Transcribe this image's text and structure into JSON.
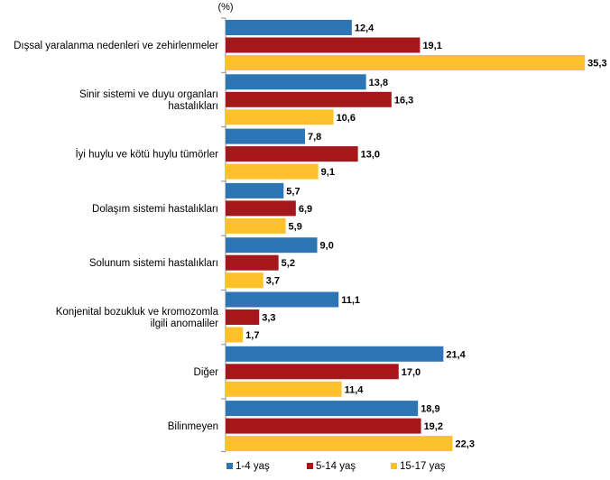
{
  "chart_data": {
    "type": "bar",
    "orientation": "horizontal",
    "unit_label": "(%)",
    "categories": [
      [
        "Dışsal yaralanma nedenleri ve zehirlenmeler"
      ],
      [
        "Sinir sistemi ve duyu organları",
        "hastalıkları"
      ],
      [
        "İyi huylu ve kötü huylu tümörler"
      ],
      [
        "Dolaşım sistemi hastalıkları"
      ],
      [
        "Solunum sistemi hastalıkları"
      ],
      [
        "Konjenital bozukluk ve kromozomla",
        "ilgili anomaliler"
      ],
      [
        "Diğer"
      ],
      [
        "Bilinmeyen"
      ]
    ],
    "series": [
      {
        "name": "1-4 yaş",
        "color": "#2E75B6",
        "values": [
          12.4,
          13.8,
          7.8,
          5.7,
          9.0,
          11.1,
          21.4,
          18.9
        ]
      },
      {
        "name": "5-14 yaş",
        "color": "#A6171C",
        "values": [
          19.1,
          16.3,
          13.0,
          6.9,
          5.2,
          3.3,
          17.0,
          19.2
        ]
      },
      {
        "name": "15-17 yaş",
        "color": "#FFC12B",
        "values": [
          35.3,
          10.6,
          9.1,
          5.9,
          3.7,
          1.7,
          11.4,
          22.3
        ]
      }
    ],
    "value_labels": [
      [
        "12,4",
        "13,8",
        "7,8",
        "5,7",
        "9,0",
        "11,1",
        "21,4",
        "18,9"
      ],
      [
        "19,1",
        "16,3",
        "13,0",
        "6,9",
        "5,2",
        "3,3",
        "17,0",
        "19,2"
      ],
      [
        "35,3",
        "10,6",
        "9,1",
        "5,9",
        "3,7",
        "1,7",
        "11,4",
        "22,3"
      ]
    ],
    "xlim": [
      0,
      37
    ],
    "grid": false,
    "legend_position": "bottom"
  }
}
